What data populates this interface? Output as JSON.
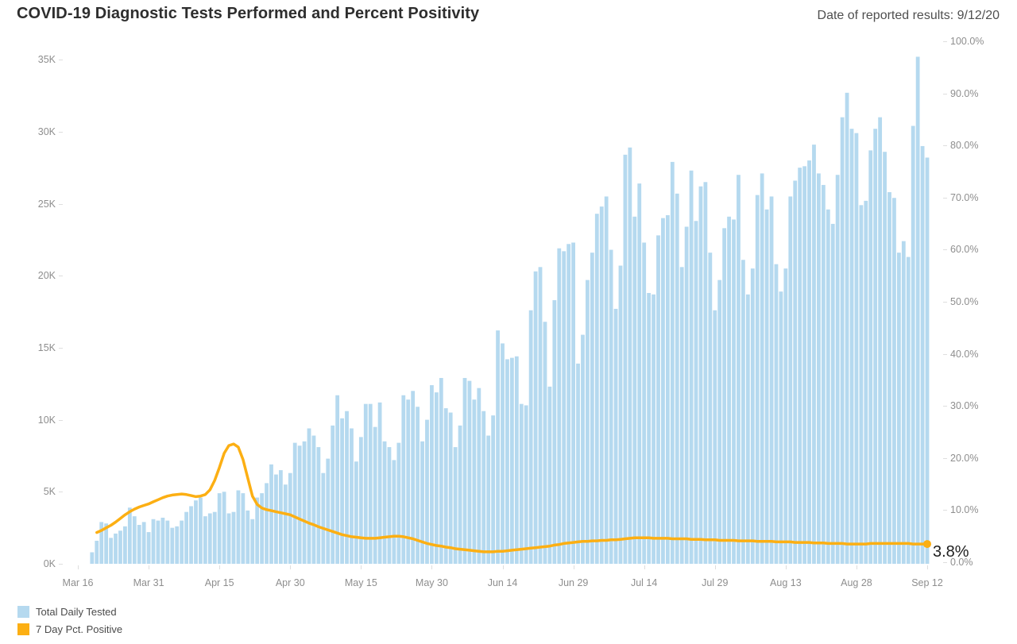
{
  "header": {
    "title": "COVID-19 Diagnostic Tests Performed and Percent Positivity",
    "date_label": "Date of reported results: 9/12/20"
  },
  "annotations": {
    "final_pct_label": "3.8%"
  },
  "legend": {
    "items": [
      {
        "label": "Total Daily Tested",
        "color": "#B5D9EF"
      },
      {
        "label": "7 Day Pct. Positive",
        "color": "#FCAF13"
      }
    ]
  },
  "colors": {
    "bar": "#B5D9EF",
    "line": "#FCAF13",
    "axis_text": "#8e8e8e"
  },
  "chart_data": {
    "type": "bar+line dual-axis daily time series",
    "title": "COVID-19 Diagnostic Tests Performed and Percent Positivity",
    "x_start": "3/16/20",
    "x_end": "9/12/20",
    "x_tick_labels": [
      "Mar 16",
      "Mar 31",
      "Apr 15",
      "Apr 30",
      "May 15",
      "May 30",
      "Jun 14",
      "Jun 29",
      "Jul 14",
      "Jul 29",
      "Aug 13",
      "Aug 28",
      "Sep 12"
    ],
    "left_axis": {
      "title": "",
      "ticks": [
        "0K",
        "5K",
        "10K",
        "15K",
        "20K",
        "25K",
        "30K",
        "35K"
      ],
      "tick_values_thousands": [
        0,
        5,
        10,
        15,
        20,
        25,
        30,
        35
      ],
      "range_thousands": [
        0,
        35
      ]
    },
    "right_axis": {
      "title": "",
      "ticks": [
        "0.0%",
        "10.0%",
        "20.0%",
        "30.0%",
        "40.0%",
        "50.0%",
        "60.0%",
        "70.0%",
        "80.0%",
        "90.0%",
        "100.0%"
      ],
      "tick_values_pct": [
        0,
        10,
        20,
        30,
        40,
        50,
        60,
        70,
        80,
        90,
        100
      ],
      "range_pct": [
        0,
        100
      ]
    },
    "grid": "off",
    "legend_position": "bottom-left",
    "series": [
      {
        "name": "Total Daily Tested",
        "type": "bar",
        "axis": "left",
        "unit": "tests per day (thousands, estimated from pixels)",
        "values_thousands": [
          0,
          0,
          0,
          0.8,
          1.6,
          2.9,
          2.8,
          1.8,
          2.1,
          2.3,
          2.6,
          3.9,
          3.3,
          2.7,
          2.9,
          2.2,
          3.1,
          3.0,
          3.2,
          3.0,
          2.5,
          2.6,
          3.0,
          3.6,
          4.0,
          4.4,
          4.6,
          3.3,
          3.5,
          3.6,
          4.9,
          5.0,
          3.5,
          3.6,
          5.1,
          4.9,
          3.7,
          3.1,
          4.6,
          4.9,
          5.6,
          6.9,
          6.2,
          6.5,
          5.5,
          6.3,
          8.4,
          8.2,
          8.5,
          9.4,
          8.9,
          8.1,
          6.3,
          7.3,
          9.6,
          11.7,
          10.1,
          10.6,
          9.4,
          7.1,
          8.8,
          11.1,
          11.1,
          9.5,
          11.2,
          8.5,
          8.1,
          7.2,
          8.4,
          11.7,
          11.4,
          12.0,
          10.9,
          8.5,
          10.0,
          12.4,
          11.9,
          12.9,
          10.8,
          10.5,
          8.1,
          9.6,
          12.9,
          12.7,
          11.4,
          12.2,
          10.6,
          8.9,
          10.3,
          16.2,
          15.3,
          14.2,
          14.3,
          14.4,
          11.1,
          11.0,
          17.6,
          20.3,
          20.6,
          16.8,
          12.3,
          18.3,
          21.9,
          21.7,
          22.2,
          22.3,
          13.9,
          15.9,
          19.7,
          21.6,
          24.3,
          24.8,
          25.5,
          21.8,
          17.7,
          20.7,
          28.4,
          28.9,
          24.1,
          26.4,
          22.3,
          18.8,
          18.7,
          22.8,
          24.0,
          24.2,
          27.9,
          25.7,
          20.6,
          23.4,
          27.3,
          23.8,
          26.2,
          26.5,
          21.6,
          17.6,
          19.7,
          23.3,
          24.1,
          23.9,
          27.0,
          21.1,
          18.7,
          20.5,
          25.6,
          27.1,
          24.6,
          25.5,
          20.8,
          18.9,
          20.5,
          25.5,
          26.6,
          27.5,
          27.6,
          28.0,
          29.1,
          27.1,
          26.3,
          24.6,
          23.6,
          27.0,
          31.0,
          32.7,
          30.2,
          29.9,
          24.9,
          25.2,
          28.7,
          30.2,
          31.0,
          28.6,
          25.8,
          25.4,
          21.6,
          22.4,
          21.3,
          30.4,
          35.2,
          29.0,
          28.2
        ]
      },
      {
        "name": "7 Day Pct. Positive",
        "type": "line",
        "axis": "right",
        "unit": "percent (estimated from pixels)",
        "end_value_pct": 3.8,
        "values_pct": [
          null,
          null,
          null,
          null,
          6.0,
          6.4,
          6.9,
          7.4,
          8.0,
          8.7,
          9.4,
          10.0,
          10.5,
          10.9,
          11.2,
          11.5,
          11.9,
          12.3,
          12.7,
          13.0,
          13.2,
          13.3,
          13.4,
          13.3,
          13.1,
          12.9,
          13.0,
          13.3,
          14.2,
          16.0,
          18.5,
          21.2,
          22.7,
          23.0,
          22.4,
          20.0,
          16.5,
          13.0,
          11.4,
          10.7,
          10.4,
          10.2,
          10.0,
          9.8,
          9.6,
          9.4,
          9.0,
          8.6,
          8.2,
          7.8,
          7.5,
          7.1,
          6.8,
          6.5,
          6.2,
          5.9,
          5.6,
          5.4,
          5.2,
          5.1,
          5.0,
          4.9,
          4.9,
          4.9,
          5.0,
          5.1,
          5.2,
          5.3,
          5.3,
          5.2,
          5.0,
          4.8,
          4.5,
          4.2,
          3.9,
          3.7,
          3.5,
          3.4,
          3.2,
          3.1,
          2.9,
          2.8,
          2.7,
          2.6,
          2.5,
          2.4,
          2.3,
          2.3,
          2.3,
          2.4,
          2.4,
          2.5,
          2.6,
          2.7,
          2.8,
          2.9,
          3.0,
          3.1,
          3.2,
          3.3,
          3.4,
          3.6,
          3.7,
          3.9,
          4.0,
          4.1,
          4.2,
          4.3,
          4.3,
          4.4,
          4.4,
          4.5,
          4.5,
          4.6,
          4.6,
          4.7,
          4.8,
          4.9,
          5.0,
          5.0,
          5.0,
          5.0,
          4.9,
          4.9,
          4.9,
          4.9,
          4.8,
          4.8,
          4.8,
          4.8,
          4.7,
          4.7,
          4.7,
          4.6,
          4.6,
          4.6,
          4.5,
          4.5,
          4.5,
          4.5,
          4.4,
          4.4,
          4.4,
          4.4,
          4.3,
          4.3,
          4.3,
          4.3,
          4.2,
          4.2,
          4.2,
          4.2,
          4.1,
          4.1,
          4.1,
          4.1,
          4.0,
          4.0,
          4.0,
          3.9,
          3.9,
          3.9,
          3.9,
          3.8,
          3.8,
          3.8,
          3.8,
          3.8,
          3.9,
          3.9,
          3.9,
          3.9,
          3.9,
          3.9,
          3.9,
          3.9,
          3.9,
          3.8,
          3.8,
          3.8,
          3.8
        ]
      }
    ]
  }
}
